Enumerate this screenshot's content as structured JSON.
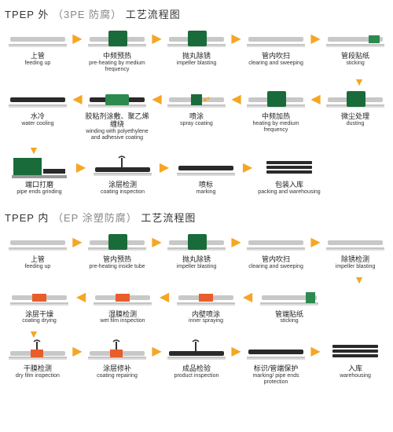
{
  "colors": {
    "arrow": "#f5a623",
    "green_dark": "#1a6b3a",
    "green_mid": "#2d8a4f",
    "pipe_gray": "#c8c8c8",
    "pipe_dark": "#6b6b6b",
    "orange": "#f5a623",
    "red_orange": "#e85d2a",
    "black": "#2a2a2a",
    "lt_gray": "#d8d8d8"
  },
  "section1": {
    "title_prefix": "TPEP 外",
    "title_paren": "（3PE 防腐）",
    "title_suffix": "工艺流程图",
    "rows": [
      {
        "dir": "right",
        "steps": [
          {
            "cn": "上管",
            "en": "feeding up",
            "icon": "pipe-plain"
          },
          {
            "cn": "中频预热",
            "en": "pre-heating by medium frequency",
            "icon": "green-box-pipe"
          },
          {
            "cn": "抛丸除锈",
            "en": "impeller blasting",
            "icon": "green-box-pipe"
          },
          {
            "cn": "管内吹扫",
            "en": "clearing and sweeping",
            "icon": "pipe-plain"
          },
          {
            "cn": "管段贴纸",
            "en": "sticking",
            "icon": "pipe-segment"
          }
        ]
      },
      {
        "dir": "left",
        "steps": [
          {
            "cn": "水冷",
            "en": "water cooling",
            "icon": "pipe-dark"
          },
          {
            "cn": "胶粘剂涂敷、聚乙烯缠绕",
            "en": "winding with polyethylene and adhesive coating",
            "icon": "pipe-green-wrap"
          },
          {
            "cn": "喷涂",
            "en": "spray coating",
            "icon": "pipe-spray"
          },
          {
            "cn": "中频加热",
            "en": "heating by medium frequency",
            "icon": "green-box-pipe"
          },
          {
            "cn": "微尘处理",
            "en": "dusting",
            "icon": "green-box-pipe"
          }
        ]
      },
      {
        "dir": "right",
        "steps": [
          {
            "cn": "端口打磨",
            "en": "pipe ends grinding",
            "icon": "machine-green"
          },
          {
            "cn": "涂层检测",
            "en": "coating inspection",
            "icon": "pipe-probe"
          },
          {
            "cn": "喷标",
            "en": "marking",
            "icon": "pipe-dark"
          },
          {
            "cn": "包装入库",
            "en": "packing and warehousing",
            "icon": "pipe-stack"
          }
        ]
      }
    ]
  },
  "section2": {
    "title_prefix": "TPEP 内",
    "title_paren": "（EP 涂塑防腐）",
    "title_suffix": "工艺流程图",
    "rows": [
      {
        "dir": "right",
        "steps": [
          {
            "cn": "上管",
            "en": "feeding up",
            "icon": "pipe-plain"
          },
          {
            "cn": "管内预热",
            "en": "pre-heating inside tube",
            "icon": "green-box-pipe"
          },
          {
            "cn": "抛丸除锈",
            "en": "impeller blasting",
            "icon": "green-box-pipe"
          },
          {
            "cn": "管内吹扫",
            "en": "clearing and sweeping",
            "icon": "pipe-plain"
          },
          {
            "cn": "除锈检测",
            "en": "impeller blasting",
            "icon": "pipe-plain"
          }
        ]
      },
      {
        "dir": "left",
        "steps": [
          {
            "cn": "涂层干燥",
            "en": "coating drying",
            "icon": "pipe-hot"
          },
          {
            "cn": "湿膜检测",
            "en": "wet film inspection",
            "icon": "pipe-hot"
          },
          {
            "cn": "内壁喷涂",
            "en": "inner spraying",
            "icon": "pipe-hot"
          },
          {
            "cn": "管端贴纸",
            "en": "sticking",
            "icon": "pipe-end-green"
          }
        ]
      },
      {
        "dir": "right",
        "steps": [
          {
            "cn": "干膜检测",
            "en": "dry film inspection",
            "icon": "pipe-probe-hot"
          },
          {
            "cn": "涂层修补",
            "en": "coating repairing",
            "icon": "pipe-probe-hot"
          },
          {
            "cn": "成品检验",
            "en": "product inspection",
            "icon": "pipe-probe"
          },
          {
            "cn": "标识/管端保护",
            "en": "marking/ pipe ends protection",
            "icon": "pipe-dark"
          },
          {
            "cn": "入库",
            "en": "warehousing",
            "icon": "pipe-stack"
          }
        ]
      }
    ]
  }
}
